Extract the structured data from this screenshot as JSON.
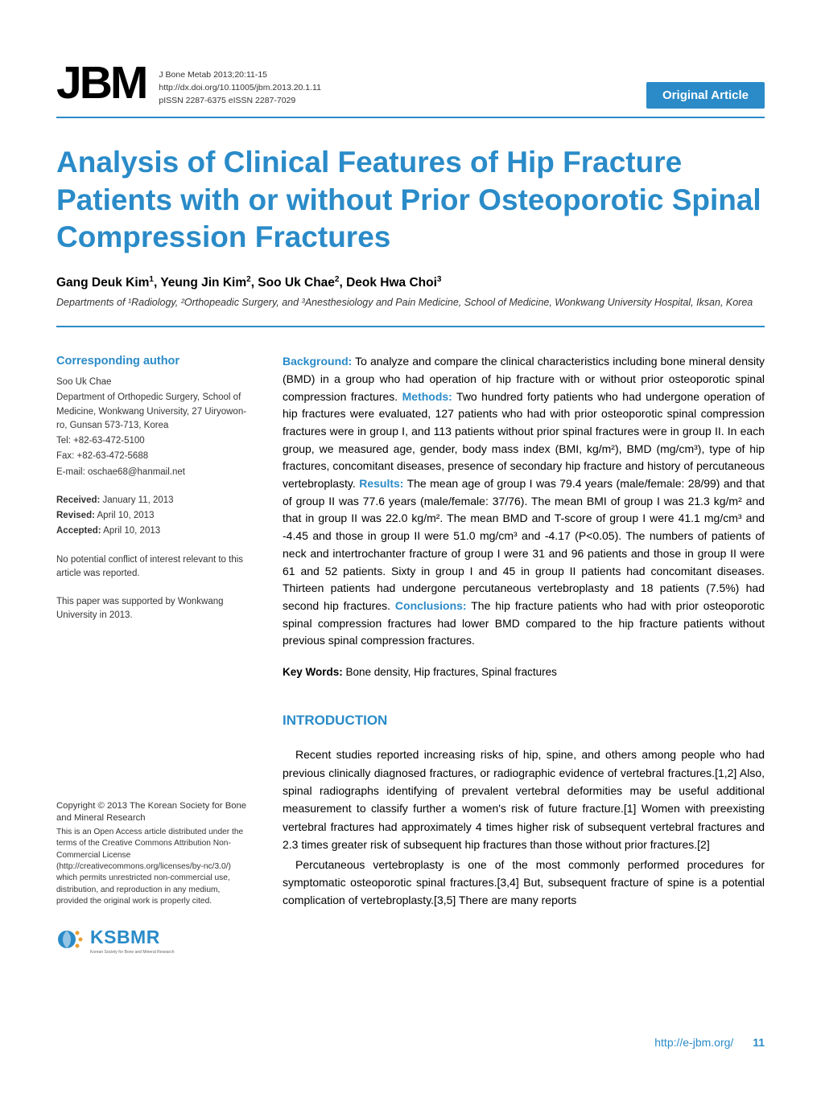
{
  "journal": {
    "logo_text": "JBM",
    "citation": "J Bone Metab 2013;20:11-15",
    "doi": "http://dx.doi.org/10.11005/jbm.2013.20.1.11",
    "issn": "pISSN 2287-6375   eISSN 2287-7029",
    "badge": "Original Article"
  },
  "colors": {
    "accent": "#2a8bc8",
    "text": "#000000",
    "muted": "#333333",
    "background": "#ffffff"
  },
  "title": "Analysis of Clinical Features of Hip Fracture Patients with or without Prior Osteoporotic Spinal Compression Fractures",
  "authors_html": "Gang Deuk Kim<sup>1</sup>, Yeung Jin Kim<sup>2</sup>, Soo Uk Chae<sup>2</sup>, Deok Hwa Choi<sup>3</sup>",
  "affiliation": "Departments of ¹Radiology, ²Orthopeadic Surgery, and ³Anesthesiology and Pain Medicine, School of Medicine, Wonkwang University Hospital, Iksan, Korea",
  "corresponding": {
    "header": "Corresponding author",
    "name": "Soo Uk Chae",
    "dept": "Department of Orthopedic Surgery, School of Medicine, Wonkwang University, 27 Uiryowon-ro, Gunsan 573-713, Korea",
    "tel": "Tel: +82-63-472-5100",
    "fax": "Fax: +82-63-472-5688",
    "email": "E-mail: oschae68@hanmail.net"
  },
  "dates": {
    "received_label": "Received:",
    "received": " January 11, 2013",
    "revised_label": "Revised:",
    "revised": " April 10, 2013",
    "accepted_label": "Accepted:",
    "accepted": " April 10, 2013"
  },
  "conflict": "No potential conflict of interest relevant to this article was reported.",
  "support": "This paper was supported by Wonkwang University in 2013.",
  "license": {
    "copyright": "Copyright © 2013 The Korean Society for Bone and Mineral Research",
    "text": "This is an Open Access article distributed under the terms of the Creative Commons Attribution Non-Commercial License (http://creativecommons.org/licenses/by-nc/3.0/) which permits unrestricted non-commercial use, distribution, and reproduction in any medium, provided the original work is properly cited."
  },
  "ksbmr": {
    "text": "KSBMR",
    "sub": "Korean Society for Bone and Mineral Research"
  },
  "abstract": {
    "background_label": "Background:",
    "background": " To analyze and compare the clinical characteristics including bone mineral density (BMD) in a group who had operation of hip fracture with or without prior osteoporotic spinal compression fractures. ",
    "methods_label": "Methods:",
    "methods": " Two hundred forty patients who had undergone operation of hip fractures were evaluated, 127 patients who had with prior osteoporotic spinal compression fractures were in group I, and 113 patients without prior spinal fractures were in group II. In each group, we measured age, gender, body mass index (BMI, kg/m²), BMD (mg/cm³), type of hip fractures, concomitant diseases, presence of secondary hip fracture and history of percutaneous vertebroplasty. ",
    "results_label": "Results:",
    "results": " The mean age of group I was 79.4 years (male/female: 28/99) and that of group II was 77.6 years (male/female: 37/76). The mean BMI of group I was 21.3 kg/m² and that in group II was 22.0 kg/m². The mean BMD and T-score of group I were 41.1 mg/cm³ and -4.45 and those in group II were 51.0 mg/cm³ and -4.17 (P<0.05). The numbers of patients of neck and intertrochanter fracture of group I were 31 and 96 patients and those in group II were 61 and 52 patients. Sixty in group I and 45 in group II patients had concomitant diseases. Thirteen patients had undergone percutaneous vertebroplasty and 18 patients (7.5%) had second hip fractures. ",
    "conclusions_label": "Conclusions:",
    "conclusions": " The hip fracture patients who had with prior osteoporotic spinal compression fractures had lower BMD compared to the hip fracture patients without previous spinal compression fractures."
  },
  "keywords": {
    "label": "Key Words:",
    "text": " Bone density, Hip fractures, Spinal fractures"
  },
  "intro": {
    "heading": "INTRODUCTION",
    "para1": "Recent studies reported increasing risks of hip, spine, and others among people who had previous clinically diagnosed fractures, or radiographic evidence of vertebral fractures.[1,2] Also, spinal radiographs identifying of prevalent vertebral deformities may be useful additional measurement to classify further a women's risk of future fracture.[1] Women with preexisting vertebral fractures had approximately 4 times higher risk of subsequent vertebral fractures and 2.3 times greater risk of subsequent hip fractures than those without prior fractures.[2]",
    "para2": "Percutaneous vertebroplasty is one of the most commonly performed procedures for symptomatic osteoporotic spinal fractures.[3,4] But, subsequent fracture of spine is a potential complication of vertebroplasty.[3,5] There are many reports"
  },
  "footer": {
    "url": "http://e-jbm.org/",
    "page": "11"
  }
}
